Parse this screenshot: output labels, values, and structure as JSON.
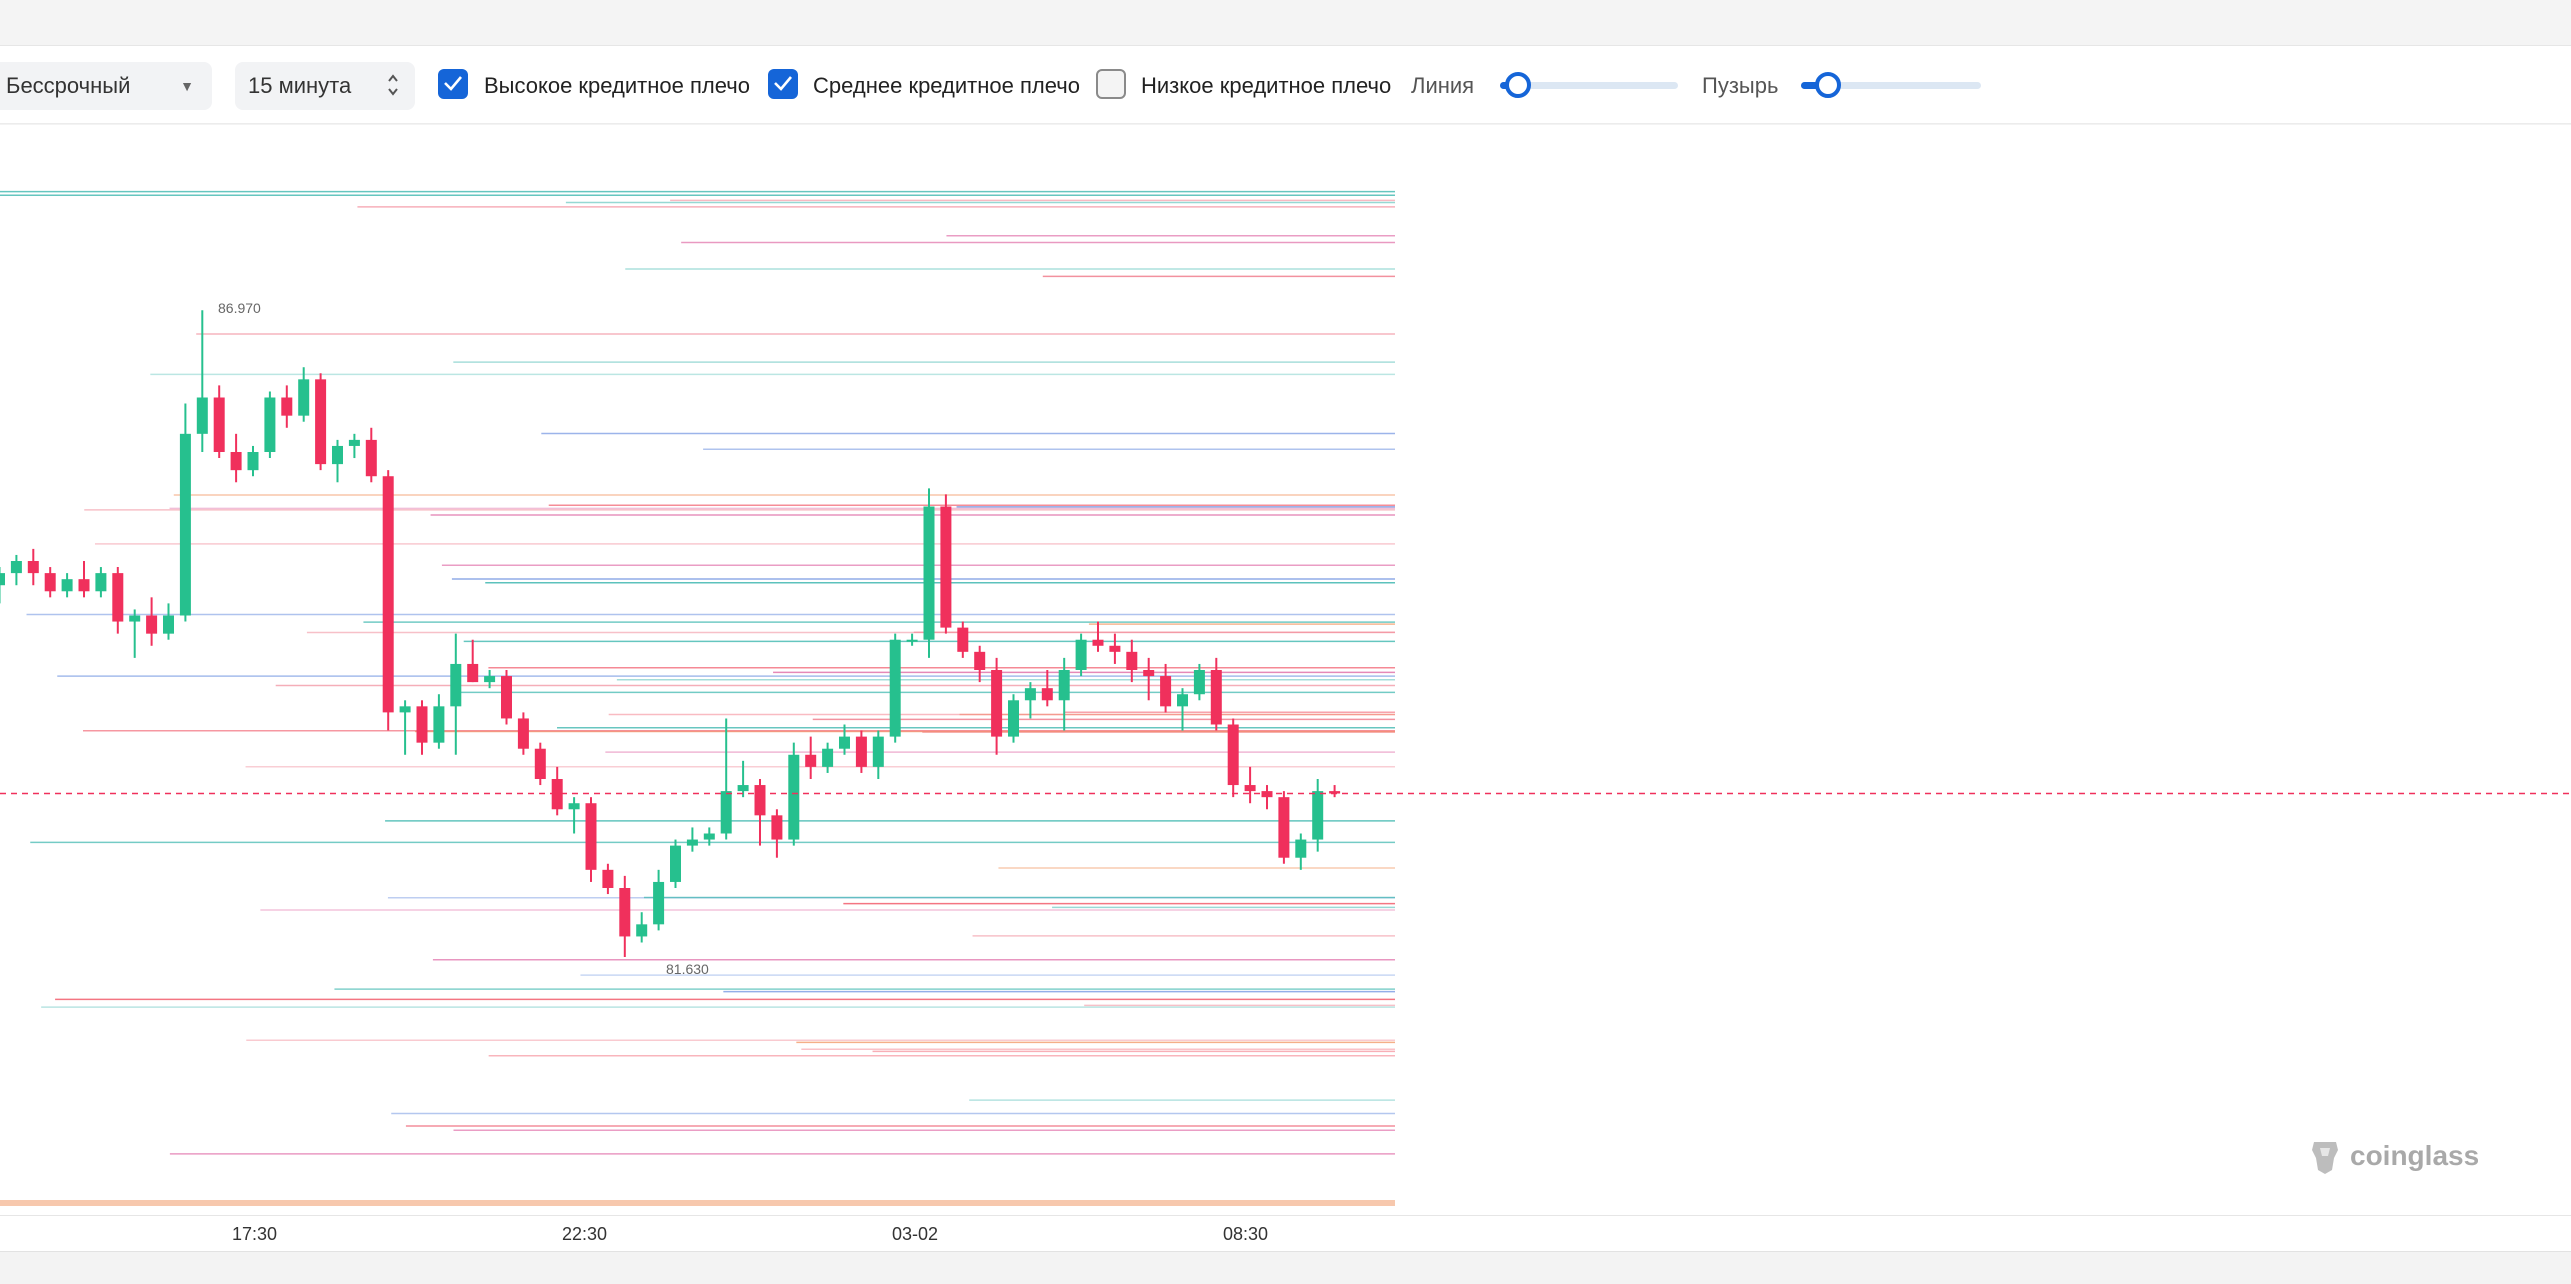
{
  "toolbar": {
    "contract_select": "Бессрочный",
    "interval_select": "15 минута",
    "options": [
      {
        "label": "Высокое кредитное плечо",
        "checked": true
      },
      {
        "label": "Среднее кредитное плечо",
        "checked": true
      },
      {
        "label": "Низкое кредитное плечо",
        "checked": false
      }
    ],
    "line_label": "Линия",
    "line_slider_value": 0.1,
    "bubble_label": "Пузырь",
    "bubble_slider_value": 0.15
  },
  "chart": {
    "high_label": "86.970",
    "low_label": "81.630",
    "x_ticks": [
      "17:30",
      "22:30",
      "03-02",
      "08:30"
    ],
    "brand": "coinglass",
    "up_color": "#26c08e",
    "down_color": "#f0305c",
    "current_line_color": "#f0305c",
    "chart_data": {
      "type": "candlestick",
      "x_labels": [
        "17:30",
        "22:30",
        "03-02",
        "08:30"
      ],
      "annotations": [
        "86.970",
        "81.630"
      ],
      "ylim": [
        79.5,
        88.5
      ],
      "candles": [
        [
          84.7,
          84.85,
          84.55,
          84.8
        ],
        [
          84.8,
          84.95,
          84.7,
          84.9
        ],
        [
          84.9,
          85.0,
          84.7,
          84.8
        ],
        [
          84.8,
          84.85,
          84.6,
          84.65
        ],
        [
          84.65,
          84.8,
          84.6,
          84.75
        ],
        [
          84.75,
          84.9,
          84.6,
          84.65
        ],
        [
          84.65,
          84.85,
          84.6,
          84.8
        ],
        [
          84.8,
          84.85,
          84.3,
          84.4
        ],
        [
          84.4,
          84.5,
          84.1,
          84.45
        ],
        [
          84.45,
          84.6,
          84.2,
          84.3
        ],
        [
          84.3,
          84.55,
          84.25,
          84.45
        ],
        [
          84.45,
          86.2,
          84.4,
          85.95
        ],
        [
          85.95,
          86.97,
          85.8,
          86.25
        ],
        [
          86.25,
          86.35,
          85.75,
          85.8
        ],
        [
          85.8,
          85.95,
          85.55,
          85.65
        ],
        [
          85.65,
          85.85,
          85.6,
          85.8
        ],
        [
          85.8,
          86.3,
          85.75,
          86.25
        ],
        [
          86.25,
          86.35,
          86.0,
          86.1
        ],
        [
          86.1,
          86.5,
          86.05,
          86.4
        ],
        [
          86.4,
          86.45,
          85.65,
          85.7
        ],
        [
          85.7,
          85.9,
          85.55,
          85.85
        ],
        [
          85.85,
          85.95,
          85.75,
          85.9
        ],
        [
          85.9,
          86.0,
          85.55,
          85.6
        ],
        [
          85.6,
          85.65,
          83.5,
          83.65
        ],
        [
          83.65,
          83.75,
          83.3,
          83.7
        ],
        [
          83.7,
          83.75,
          83.3,
          83.4
        ],
        [
          83.4,
          83.8,
          83.35,
          83.7
        ],
        [
          83.7,
          84.3,
          83.3,
          84.05
        ],
        [
          84.05,
          84.25,
          83.9,
          83.9
        ],
        [
          83.9,
          84.0,
          83.85,
          83.95
        ],
        [
          83.95,
          84.0,
          83.55,
          83.6
        ],
        [
          83.6,
          83.65,
          83.3,
          83.35
        ],
        [
          83.35,
          83.4,
          83.05,
          83.1
        ],
        [
          83.1,
          83.2,
          82.8,
          82.85
        ],
        [
          82.85,
          82.95,
          82.65,
          82.9
        ],
        [
          82.9,
          82.95,
          82.25,
          82.35
        ],
        [
          82.35,
          82.4,
          82.15,
          82.2
        ],
        [
          82.2,
          82.3,
          81.63,
          81.8
        ],
        [
          81.8,
          82.0,
          81.75,
          81.9
        ],
        [
          81.9,
          82.35,
          81.85,
          82.25
        ],
        [
          82.25,
          82.6,
          82.2,
          82.55
        ],
        [
          82.55,
          82.7,
          82.5,
          82.6
        ],
        [
          82.6,
          82.7,
          82.55,
          82.65
        ],
        [
          82.65,
          83.6,
          82.6,
          83.0
        ],
        [
          83.0,
          83.25,
          82.95,
          83.05
        ],
        [
          83.05,
          83.1,
          82.55,
          82.8
        ],
        [
          82.8,
          82.85,
          82.45,
          82.6
        ],
        [
          82.6,
          83.4,
          82.55,
          83.3
        ],
        [
          83.3,
          83.45,
          83.1,
          83.2
        ],
        [
          83.2,
          83.4,
          83.15,
          83.35
        ],
        [
          83.35,
          83.55,
          83.3,
          83.45
        ],
        [
          83.45,
          83.5,
          83.15,
          83.2
        ],
        [
          83.2,
          83.5,
          83.1,
          83.45
        ],
        [
          83.45,
          84.3,
          83.4,
          84.25
        ],
        [
          84.25,
          84.3,
          84.2,
          84.25
        ],
        [
          84.25,
          85.5,
          84.1,
          85.35
        ],
        [
          85.35,
          85.45,
          84.3,
          84.35
        ],
        [
          84.35,
          84.4,
          84.1,
          84.15
        ],
        [
          84.15,
          84.2,
          83.9,
          84.0
        ],
        [
          84.0,
          84.1,
          83.3,
          83.45
        ],
        [
          83.45,
          83.8,
          83.4,
          83.75
        ],
        [
          83.75,
          83.9,
          83.6,
          83.85
        ],
        [
          83.85,
          84.0,
          83.7,
          83.75
        ],
        [
          83.75,
          84.1,
          83.5,
          84.0
        ],
        [
          84.0,
          84.3,
          83.95,
          84.25
        ],
        [
          84.25,
          84.4,
          84.15,
          84.2
        ],
        [
          84.2,
          84.3,
          84.05,
          84.15
        ],
        [
          84.15,
          84.25,
          83.9,
          84.0
        ],
        [
          84.0,
          84.1,
          83.75,
          83.95
        ],
        [
          83.95,
          84.05,
          83.65,
          83.7
        ],
        [
          83.7,
          83.85,
          83.5,
          83.8
        ],
        [
          83.8,
          84.05,
          83.75,
          84.0
        ],
        [
          84.0,
          84.1,
          83.5,
          83.55
        ],
        [
          83.55,
          83.6,
          82.95,
          83.05
        ],
        [
          83.05,
          83.2,
          82.9,
          83.0
        ],
        [
          83.0,
          83.05,
          82.85,
          82.95
        ],
        [
          82.95,
          83.0,
          82.4,
          82.45
        ],
        [
          82.45,
          82.65,
          82.35,
          82.6
        ],
        [
          82.6,
          83.1,
          82.5,
          83.0
        ],
        [
          83.0,
          83.05,
          82.95,
          82.98
        ]
      ]
    }
  }
}
